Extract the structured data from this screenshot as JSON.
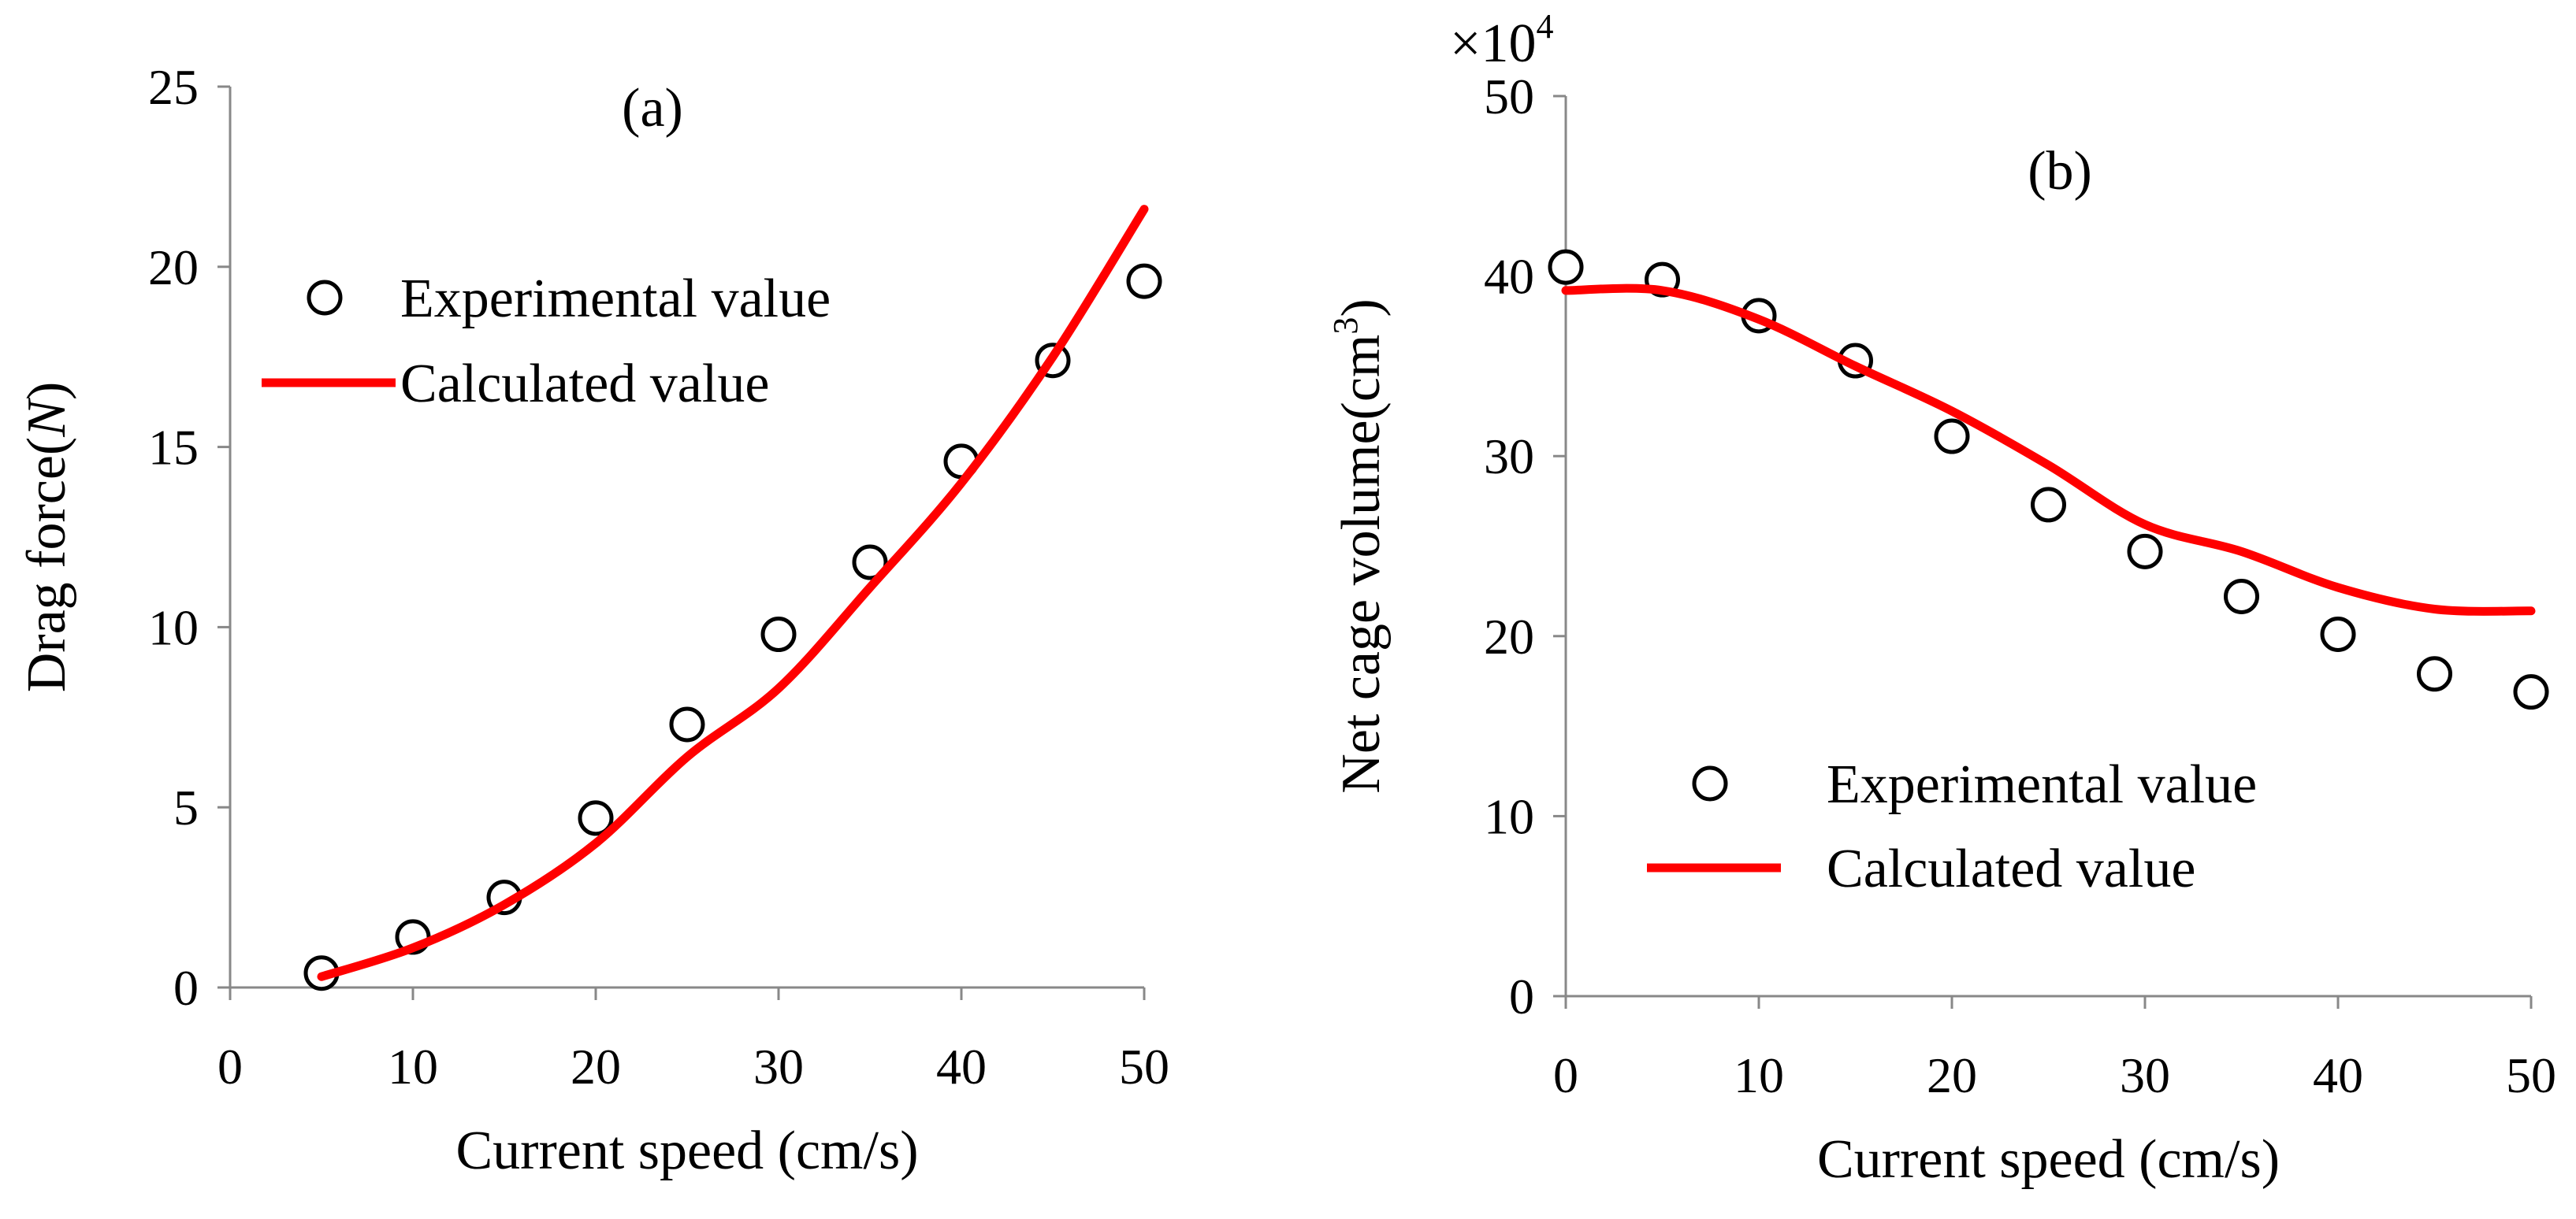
{
  "chart_data": [
    {
      "type": "line",
      "panel_label": "(a)",
      "xlabel": "Current speed (cm/s)",
      "ylabel": "Drag force(N)",
      "ylabel_parts": {
        "before": "Drag force(",
        "italic": "N",
        "after": ")"
      },
      "xlim": [
        0,
        50
      ],
      "ylim": [
        0,
        25
      ],
      "xticks": [
        0,
        10,
        20,
        30,
        40,
        50
      ],
      "yticks": [
        0,
        5,
        10,
        15,
        20,
        25
      ],
      "grid": false,
      "legend_position": "upper-left",
      "series": [
        {
          "name": "Experimental value",
          "kind": "scatter",
          "marker": "open-circle",
          "color": "#000000",
          "x": [
            5,
            10,
            15,
            20,
            25,
            30,
            35,
            40,
            45,
            50
          ],
          "y": [
            0.4,
            1.4,
            2.5,
            4.7,
            7.3,
            9.8,
            11.8,
            14.6,
            17.4,
            19.6
          ]
        },
        {
          "name": "Calculated value",
          "kind": "line",
          "color": "#ff0000",
          "x": [
            5,
            10,
            15,
            20,
            25,
            30,
            35,
            40,
            45,
            50
          ],
          "y": [
            0.3,
            1.1,
            2.3,
            4.0,
            6.4,
            8.3,
            11.1,
            14.0,
            17.5,
            21.6
          ]
        }
      ]
    },
    {
      "type": "line",
      "panel_label": "(b)",
      "xlabel": "Current speed (cm/s)",
      "ylabel": "Net cage volume(cm3)",
      "ylabel_parts": {
        "before": "Net cage volume(cm",
        "sup": "3",
        "after": ")"
      },
      "y_multiplier": "×10",
      "y_multiplier_exp": "4",
      "xlim": [
        0,
        50
      ],
      "ylim": [
        0,
        50
      ],
      "xticks": [
        0,
        10,
        20,
        30,
        40,
        50
      ],
      "yticks": [
        0,
        10,
        20,
        30,
        40,
        50
      ],
      "grid": false,
      "legend_position": "lower-left",
      "series": [
        {
          "name": "Experimental value",
          "kind": "scatter",
          "marker": "open-circle",
          "color": "#000000",
          "x": [
            0,
            5,
            10,
            15,
            20,
            25,
            30,
            35,
            40,
            45,
            50
          ],
          "y": [
            40.5,
            39.8,
            37.8,
            35.3,
            31.1,
            27.3,
            24.7,
            22.2,
            20.1,
            17.9,
            16.9
          ]
        },
        {
          "name": "Calculated value",
          "kind": "line",
          "color": "#ff0000",
          "x": [
            0,
            5,
            10,
            15,
            20,
            25,
            30,
            35,
            40,
            45,
            50
          ],
          "y": [
            39.2,
            39.2,
            37.6,
            35.0,
            32.5,
            29.5,
            26.2,
            24.7,
            22.7,
            21.5,
            21.4
          ]
        }
      ]
    }
  ]
}
